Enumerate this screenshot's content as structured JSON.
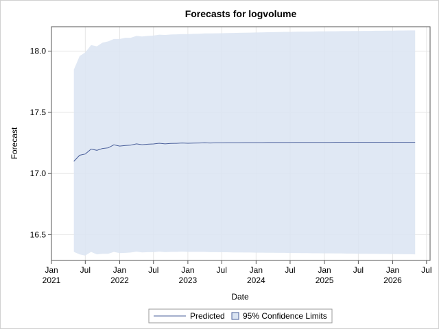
{
  "chart_data": {
    "type": "line",
    "title": "Forecasts for logvolume",
    "xlabel": "Date",
    "ylabel": "Forecast",
    "ylim": [
      16.29,
      18.2
    ],
    "yticks": [
      16.5,
      17.0,
      17.5,
      18.0
    ],
    "ytick_labels": [
      "16.5",
      "17.0",
      "17.5",
      "18.0"
    ],
    "xlim": [
      "2021-01-01",
      "2026-07-20"
    ],
    "xticks": [
      {
        "date": "2021-01-01",
        "label1": "Jan",
        "label2": "2021"
      },
      {
        "date": "2021-07-01",
        "label1": "Jul",
        "label2": ""
      },
      {
        "date": "2022-01-01",
        "label1": "Jan",
        "label2": "2022"
      },
      {
        "date": "2022-07-01",
        "label1": "Jul",
        "label2": ""
      },
      {
        "date": "2023-01-01",
        "label1": "Jan",
        "label2": "2023"
      },
      {
        "date": "2023-07-01",
        "label1": "Jul",
        "label2": ""
      },
      {
        "date": "2024-01-01",
        "label1": "Jan",
        "label2": "2024"
      },
      {
        "date": "2024-07-01",
        "label1": "Jul",
        "label2": ""
      },
      {
        "date": "2025-01-01",
        "label1": "Jan",
        "label2": "2025"
      },
      {
        "date": "2025-07-01",
        "label1": "Jul",
        "label2": ""
      },
      {
        "date": "2026-01-01",
        "label1": "Jan",
        "label2": "2026"
      },
      {
        "date": "2026-07-01",
        "label1": "Jul",
        "label2": ""
      }
    ],
    "grid": true,
    "legend_position": "bottom",
    "legend": {
      "predicted": "Predicted",
      "ci": "95% Confidence Limits"
    },
    "colors": {
      "line": "#4a5f9a",
      "band": "#dae4f2",
      "grid": "#e6e6e6",
      "axis": "#555555"
    },
    "dates": [
      "2021-05-01",
      "2021-06-01",
      "2021-07-01",
      "2021-08-01",
      "2021-09-01",
      "2021-10-01",
      "2021-11-01",
      "2021-12-01",
      "2022-01-01",
      "2022-02-01",
      "2022-03-01",
      "2022-04-01",
      "2022-05-01",
      "2022-06-01",
      "2022-07-01",
      "2022-08-01",
      "2022-09-01",
      "2022-10-01",
      "2022-11-01",
      "2022-12-01",
      "2023-01-01",
      "2023-02-01",
      "2023-03-01",
      "2023-04-01",
      "2023-05-01",
      "2023-06-01",
      "2023-07-01",
      "2023-08-01",
      "2023-09-01",
      "2023-10-01",
      "2023-11-01",
      "2023-12-01",
      "2024-01-01",
      "2024-02-01",
      "2024-03-01",
      "2024-04-01",
      "2024-05-01",
      "2024-06-01",
      "2024-07-01",
      "2024-08-01",
      "2024-09-01",
      "2024-10-01",
      "2024-11-01",
      "2024-12-01",
      "2025-01-01",
      "2025-02-01",
      "2025-03-01",
      "2025-04-01",
      "2025-05-01",
      "2025-06-01",
      "2025-07-01",
      "2025-08-01",
      "2025-09-01",
      "2025-10-01",
      "2025-11-01",
      "2025-12-01",
      "2026-01-01",
      "2026-02-01",
      "2026-03-01",
      "2026-04-01",
      "2026-05-01"
    ],
    "series": [
      {
        "name": "Predicted",
        "values": [
          17.1,
          17.15,
          17.16,
          17.2,
          17.19,
          17.205,
          17.21,
          17.235,
          17.225,
          17.23,
          17.232,
          17.243,
          17.236,
          17.24,
          17.242,
          17.248,
          17.243,
          17.246,
          17.247,
          17.25,
          17.248,
          17.249,
          17.25,
          17.251,
          17.25,
          17.251,
          17.251,
          17.252,
          17.252,
          17.252,
          17.253,
          17.253,
          17.253,
          17.253,
          17.254,
          17.254,
          17.254,
          17.254,
          17.254,
          17.255,
          17.255,
          17.255,
          17.255,
          17.255,
          17.255,
          17.255,
          17.256,
          17.256,
          17.256,
          17.256,
          17.256,
          17.256,
          17.256,
          17.256,
          17.256,
          17.256,
          17.256,
          17.256,
          17.256,
          17.256,
          17.256
        ]
      },
      {
        "name": "95% Confidence Limits",
        "upper": [
          17.85,
          17.96,
          17.99,
          18.05,
          18.04,
          18.07,
          18.08,
          18.1,
          18.1,
          18.11,
          18.11,
          18.125,
          18.12,
          18.125,
          18.128,
          18.135,
          18.133,
          18.136,
          18.138,
          18.14,
          18.14,
          18.142,
          18.143,
          18.145,
          18.145,
          18.146,
          18.147,
          18.148,
          18.149,
          18.15,
          18.151,
          18.152,
          18.153,
          18.154,
          18.155,
          18.156,
          18.157,
          18.158,
          18.158,
          18.159,
          18.16,
          18.16,
          18.161,
          18.162,
          18.162,
          18.163,
          18.163,
          18.164,
          18.164,
          18.165,
          18.165,
          18.166,
          18.166,
          18.167,
          18.167,
          18.168,
          18.168,
          18.169,
          18.169,
          18.17,
          18.17
        ],
        "lower": [
          16.36,
          16.34,
          16.33,
          16.36,
          16.34,
          16.345,
          16.345,
          16.36,
          16.35,
          16.352,
          16.355,
          16.362,
          16.356,
          16.358,
          16.358,
          16.362,
          16.358,
          16.36,
          16.36,
          16.362,
          16.36,
          16.36,
          16.36,
          16.36,
          16.358,
          16.358,
          16.357,
          16.357,
          16.356,
          16.356,
          16.355,
          16.355,
          16.354,
          16.354,
          16.353,
          16.353,
          16.352,
          16.352,
          16.351,
          16.351,
          16.35,
          16.35,
          16.349,
          16.349,
          16.348,
          16.348,
          16.347,
          16.347,
          16.346,
          16.346,
          16.345,
          16.345,
          16.344,
          16.344,
          16.343,
          16.343,
          16.342,
          16.342,
          16.341,
          16.341,
          16.34
        ]
      }
    ]
  }
}
